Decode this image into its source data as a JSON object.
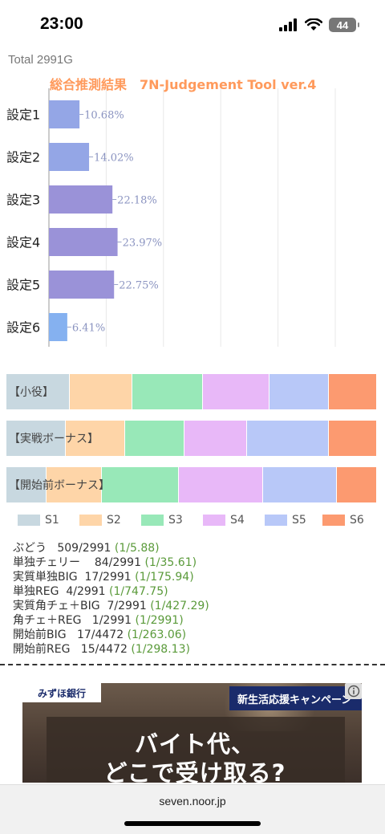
{
  "status_bar": {
    "time": "23:00",
    "battery": "44"
  },
  "header": {
    "total": "Total 2991G",
    "title": "総合推測結果　7N-Judgement Tool ver.4"
  },
  "chart_data": {
    "type": "bar",
    "orientation": "horizontal",
    "categories": [
      "設定1",
      "設定2",
      "設定3",
      "設定4",
      "設定5",
      "設定6"
    ],
    "values": [
      10.68,
      14.02,
      22.18,
      23.97,
      22.75,
      6.41
    ],
    "value_labels": [
      "10.68%",
      "14.02%",
      "22.18%",
      "23.97%",
      "22.75%",
      "6.41%"
    ],
    "colors": [
      "#94a6e6",
      "#94a6e6",
      "#9a92d8",
      "#9a92d8",
      "#9a92d8",
      "#85b1f0"
    ],
    "xlim": [
      0,
      100
    ],
    "grid": true
  },
  "stacked_bars": [
    {
      "label": "【小役】",
      "values": [
        17,
        17,
        19,
        18,
        16,
        13
      ]
    },
    {
      "label": "【実戦ボーナス】",
      "values": [
        16,
        16,
        16,
        17,
        22,
        13
      ]
    },
    {
      "label": "【開始前ボーナス】",
      "values": [
        11,
        15,
        21,
        23,
        20,
        11
      ]
    }
  ],
  "legend": [
    {
      "name": "S1",
      "color": "#c8d8e0"
    },
    {
      "name": "S2",
      "color": "#fed5a8"
    },
    {
      "name": "S3",
      "color": "#98e8b8"
    },
    {
      "name": "S4",
      "color": "#e8b8f8"
    },
    {
      "name": "S5",
      "color": "#b8c8f8"
    },
    {
      "name": "S6",
      "color": "#fc9a70"
    }
  ],
  "stats": [
    {
      "label": "ぶどう",
      "count": "509/2991",
      "ratio": "(1/5.88)"
    },
    {
      "label": "単独チェリー",
      "count": "84/2991",
      "ratio": "(1/35.61)"
    },
    {
      "label": "実質単独BIG",
      "count": "17/2991",
      "ratio": "(1/175.94)"
    },
    {
      "label": "単独REG",
      "count": "4/2991",
      "ratio": "(1/747.75)"
    },
    {
      "label": "実質角チェ＋BIG",
      "count": "7/2991",
      "ratio": "(1/427.29)"
    },
    {
      "label": "角チェ＋REG",
      "count": "1/2991",
      "ratio": "(1/2991)"
    },
    {
      "label": "開始前BIG",
      "count": "17/4472",
      "ratio": "(1/263.06)"
    },
    {
      "label": "開始前REG",
      "count": "15/4472",
      "ratio": "(1/298.13)"
    }
  ],
  "ad": {
    "bank": "みずほ銀行",
    "campaign": "新生活応援キャンペーン",
    "headline_1": "バイト代、",
    "headline_2": "どこで受け取る?"
  },
  "browser": {
    "url": "seven.noor.jp"
  }
}
